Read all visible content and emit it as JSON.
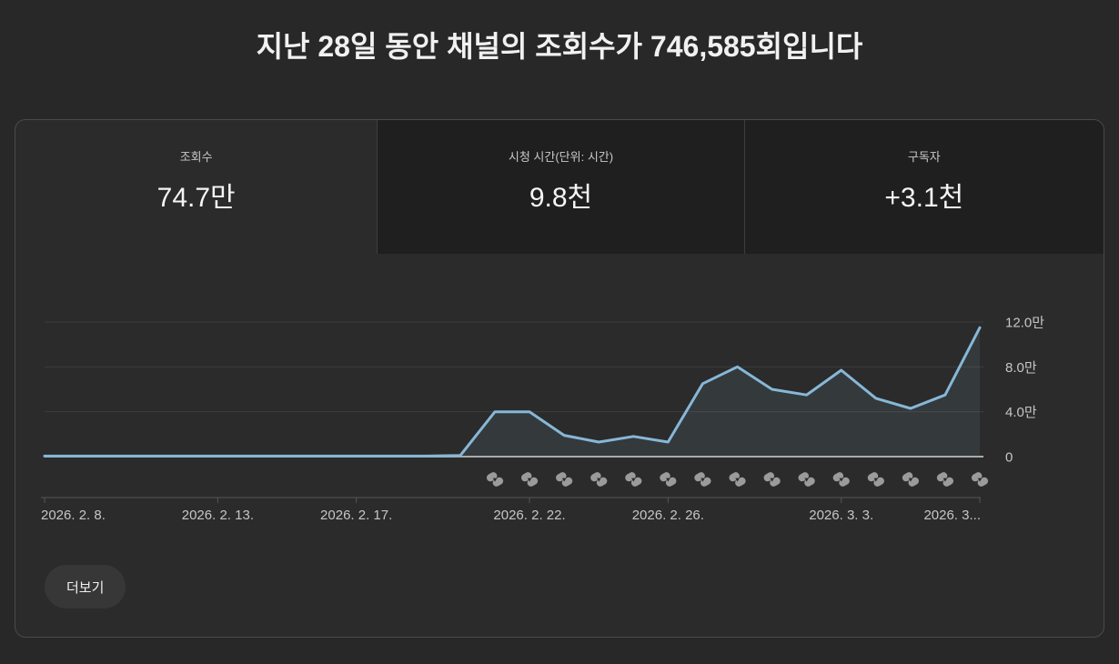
{
  "page": {
    "title": "지난 28일 동안 채널의 조회수가 746,585회입니다"
  },
  "metric_tabs": [
    {
      "label": "조회수",
      "value": "74.7만",
      "selected": true
    },
    {
      "label": "시청 시간(단위: 시간)",
      "value": "9.8천",
      "selected": false
    },
    {
      "label": "구독자",
      "value": "+3.1천",
      "selected": false
    }
  ],
  "chart_data": {
    "type": "area",
    "series_name": "조회수",
    "unit": "만 (×10,000 views per day)",
    "x": [
      "2026. 2. 8.",
      "2026. 2. 9.",
      "2026. 2. 10.",
      "2026. 2. 11.",
      "2026. 2. 12.",
      "2026. 2. 13.",
      "2026. 2. 14.",
      "2026. 2. 15.",
      "2026. 2. 16.",
      "2026. 2. 17.",
      "2026. 2. 18.",
      "2026. 2. 19.",
      "2026. 2. 20.",
      "2026. 2. 21.",
      "2026. 2. 22.",
      "2026. 2. 23.",
      "2026. 2. 24.",
      "2026. 2. 25.",
      "2026. 2. 26.",
      "2026. 2. 27.",
      "2026. 2. 28.",
      "2026. 3. 1.",
      "2026. 3. 2.",
      "2026. 3. 3.",
      "2026. 3. 4.",
      "2026. 3. 5.",
      "2026. 3. 6.",
      "2026. 3. 7."
    ],
    "values": [
      0.05,
      0.05,
      0.05,
      0.05,
      0.05,
      0.05,
      0.05,
      0.05,
      0.05,
      0.05,
      0.05,
      0.05,
      0.1,
      4.0,
      4.0,
      1.9,
      1.3,
      1.8,
      1.3,
      6.5,
      8.0,
      6.0,
      5.5,
      7.7,
      5.2,
      4.3,
      5.5,
      11.5
    ],
    "ylim": [
      0,
      12.5
    ],
    "grid": true,
    "legend_position": "none",
    "y_ticks": [
      {
        "v": 0,
        "label": "0"
      },
      {
        "v": 4,
        "label": "4.0만"
      },
      {
        "v": 8,
        "label": "8.0만"
      },
      {
        "v": 12,
        "label": "12.0만"
      }
    ],
    "x_tick_marks": [
      {
        "index": 0,
        "label": "2026. 2. 8.",
        "align": "start"
      },
      {
        "index": 5,
        "label": "2026. 2. 13.",
        "align": "middle"
      },
      {
        "index": 9,
        "label": "2026. 2. 17.",
        "align": "middle"
      },
      {
        "index": 14,
        "label": "2026. 2. 22.",
        "align": "middle"
      },
      {
        "index": 18,
        "label": "2026. 2. 26.",
        "align": "middle"
      },
      {
        "index": 23,
        "label": "2026. 3. 3.",
        "align": "middle"
      },
      {
        "index": 27,
        "label": "2026. 3...",
        "align": "end"
      }
    ],
    "shorts_marker_indices": [
      13,
      14,
      15,
      16,
      17,
      18,
      19,
      20,
      21,
      22,
      23,
      24,
      25,
      26,
      27
    ],
    "colors": {
      "line": "#87b7d7",
      "area_fill": "rgba(134,182,212,0.10)",
      "grid": "#3e3e3e",
      "zero_axis": "#ababab",
      "tick_baseline": "#565656",
      "tick_text": "#c6c6c6",
      "shorts_icon": "#9b9b9b"
    }
  },
  "footer": {
    "see_more_label": "더보기"
  }
}
